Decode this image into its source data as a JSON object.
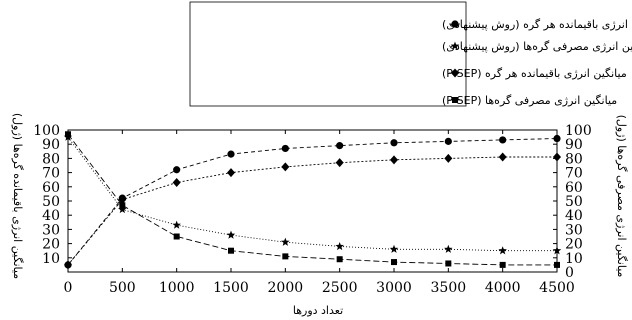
{
  "chart_data": {
    "type": "line",
    "xlabel": "تعداد دورها",
    "ylabel_left": "میانگین انرژی باقیمانده گره‌ها (ژول)",
    "ylabel_right": "میانگین انرژی مصرفی گره‌ها (ژول)",
    "x": [
      0,
      500,
      1000,
      1500,
      2000,
      2500,
      3000,
      3500,
      4000,
      4500
    ],
    "xlim": [
      0,
      4500
    ],
    "ylim": [
      0,
      100
    ],
    "yticks_left": [
      10,
      20,
      30,
      40,
      50,
      60,
      70,
      80,
      90,
      100
    ],
    "yticks_right": [
      0,
      10,
      20,
      30,
      40,
      50,
      60,
      70,
      80,
      90,
      100
    ],
    "grid": false,
    "legend_position": "top-center",
    "series": [
      {
        "name": "میانگین انرژی باقیمانده هر گره (روش پیشنهادی)",
        "marker": "circle",
        "dash": "4,3",
        "values": [
          5,
          52,
          72,
          83,
          87,
          89,
          91,
          92,
          93,
          94
        ]
      },
      {
        "name": "میانگین انرژی مصرفی گره‌ها (روش پیشنهادی)",
        "marker": "star",
        "dash": "1,2",
        "values": [
          95,
          44,
          33,
          26,
          21,
          18,
          16,
          16,
          15,
          15
        ]
      },
      {
        "name": "میانگین انرژی باقیمانده هر گره (P-SEP)",
        "marker": "diamond",
        "dash": "2,2",
        "values": [
          5,
          51,
          63,
          70,
          74,
          77,
          79,
          80,
          81,
          81
        ]
      },
      {
        "name": "میانگین انرژی مصرفی گره‌ها (P-SEP)",
        "marker": "square",
        "dash": "6,3",
        "values": [
          97,
          47,
          25,
          15,
          11,
          9,
          7,
          6,
          5,
          5
        ]
      }
    ]
  }
}
